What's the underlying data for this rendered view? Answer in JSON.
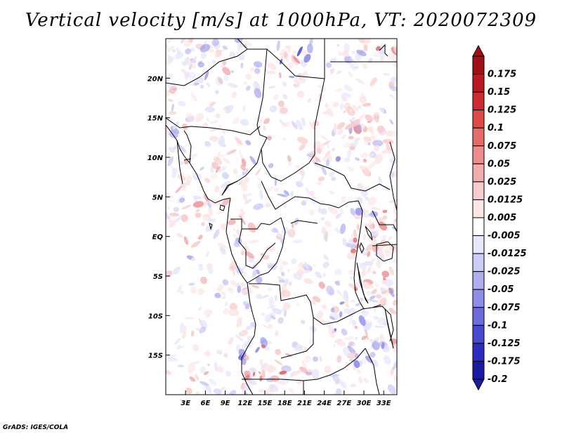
{
  "title": "Vertical velocity [m/s] at 1000hPa, VT: 2020072309",
  "credit": "GrADS: IGES/COLA",
  "map": {
    "lon_range": [
      0,
      35
    ],
    "lat_range": [
      -20,
      25
    ],
    "lat_ticks": [
      {
        "value": 20,
        "label": "20N"
      },
      {
        "value": 15,
        "label": "15N"
      },
      {
        "value": 10,
        "label": "10N"
      },
      {
        "value": 5,
        "label": "5N"
      },
      {
        "value": 0,
        "label": "EQ"
      },
      {
        "value": -5,
        "label": "5S"
      },
      {
        "value": -10,
        "label": "10S"
      },
      {
        "value": -15,
        "label": "15S"
      }
    ],
    "lon_ticks": [
      {
        "value": 3,
        "label": "3E"
      },
      {
        "value": 6,
        "label": "6E"
      },
      {
        "value": 9,
        "label": "9E"
      },
      {
        "value": 12,
        "label": "12E"
      },
      {
        "value": 15,
        "label": "15E"
      },
      {
        "value": 18,
        "label": "18E"
      },
      {
        "value": 21,
        "label": "21E"
      },
      {
        "value": 24,
        "label": "24E"
      },
      {
        "value": 27,
        "label": "27E"
      },
      {
        "value": 30,
        "label": "30E"
      },
      {
        "value": 33,
        "label": "33E"
      }
    ]
  },
  "colorbar": {
    "bins": [
      {
        "label": "0.175",
        "color": "#a01018"
      },
      {
        "label": "0.15",
        "color": "#bb1a22"
      },
      {
        "label": "0.125",
        "color": "#cf2c30"
      },
      {
        "label": "0.1",
        "color": "#dd4a48"
      },
      {
        "label": "0.075",
        "color": "#e46c6a"
      },
      {
        "label": "0.05",
        "color": "#ec8c8c"
      },
      {
        "label": "0.025",
        "color": "#f3acac"
      },
      {
        "label": "0.0125",
        "color": "#f8cccc"
      },
      {
        "label": "0.005",
        "color": "#fce6e6"
      },
      {
        "label": "-0.005",
        "color": "#ffffff"
      },
      {
        "label": "-0.0125",
        "color": "#e6e6fc"
      },
      {
        "label": "-0.025",
        "color": "#ccccf8"
      },
      {
        "label": "-0.05",
        "color": "#aeaef0"
      },
      {
        "label": "-0.075",
        "color": "#8e8ee8"
      },
      {
        "label": "-0.1",
        "color": "#6c6cdc"
      },
      {
        "label": "-0.125",
        "color": "#4a4ad0"
      },
      {
        "label": "-0.175",
        "color": "#2c2cbe"
      },
      {
        "label": "-0.2",
        "color": "#1a1aa4"
      }
    ],
    "top_color": "#a01018",
    "bottom_color": "#1a1aa4"
  }
}
